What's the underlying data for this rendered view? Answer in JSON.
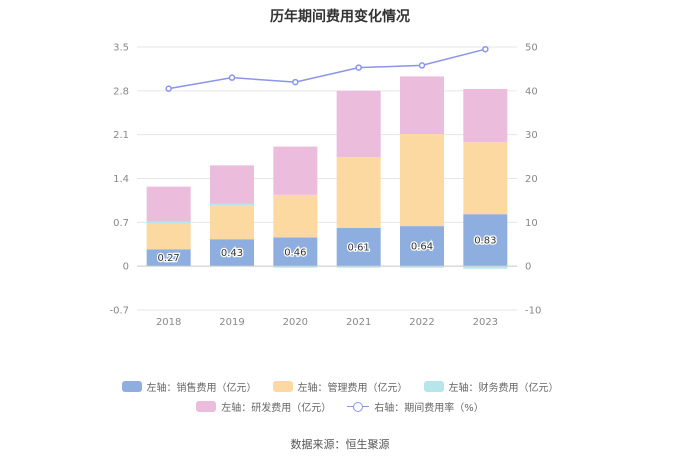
{
  "chart_data": {
    "type": "bar",
    "title": "历年期间费用变化情况",
    "categories": [
      "2018",
      "2019",
      "2020",
      "2021",
      "2022",
      "2023"
    ],
    "series": [
      {
        "name": "左轴：销售费用（亿元）",
        "axis": "left",
        "kind": "stacked-bar",
        "color": "#8eaee0",
        "values": [
          0.27,
          0.43,
          0.46,
          0.61,
          0.64,
          0.83
        ],
        "labels": [
          "0.27",
          "0.43",
          "0.46",
          "0.61",
          "0.64",
          "0.83"
        ]
      },
      {
        "name": "左轴：管理费用（亿元）",
        "axis": "left",
        "kind": "stacked-bar",
        "color": "#fcd9a0",
        "values": [
          0.43,
          0.56,
          0.68,
          1.13,
          1.47,
          1.15
        ]
      },
      {
        "name": "左轴：财务费用（亿元）",
        "axis": "left",
        "kind": "stacked-bar",
        "color": "#b6e6ea",
        "values": [
          0.01,
          0.01,
          -0.02,
          -0.01,
          -0.01,
          -0.04
        ]
      },
      {
        "name": "左轴：研发费用（亿元）",
        "axis": "left",
        "kind": "stacked-bar",
        "color": "#ebbcdc",
        "values": [
          0.56,
          0.61,
          0.77,
          1.06,
          0.92,
          0.85
        ]
      },
      {
        "name": "右轴：期间费用率（%）",
        "axis": "right",
        "kind": "line",
        "color": "#8b94e8",
        "values": [
          40.5,
          43.0,
          42.0,
          45.3,
          45.8,
          49.5
        ]
      }
    ],
    "y_left": {
      "min": -0.7,
      "max": 3.5,
      "ticks": [
        "-0.7",
        "0",
        "0.7",
        "1.4",
        "2.1",
        "2.8",
        "3.5"
      ]
    },
    "y_right": {
      "min": -10,
      "max": 50,
      "ticks": [
        "-10",
        "0",
        "10",
        "20",
        "30",
        "40",
        "50"
      ]
    },
    "grid": true,
    "legend_position": "bottom"
  },
  "source": "数据来源：恒生聚源"
}
